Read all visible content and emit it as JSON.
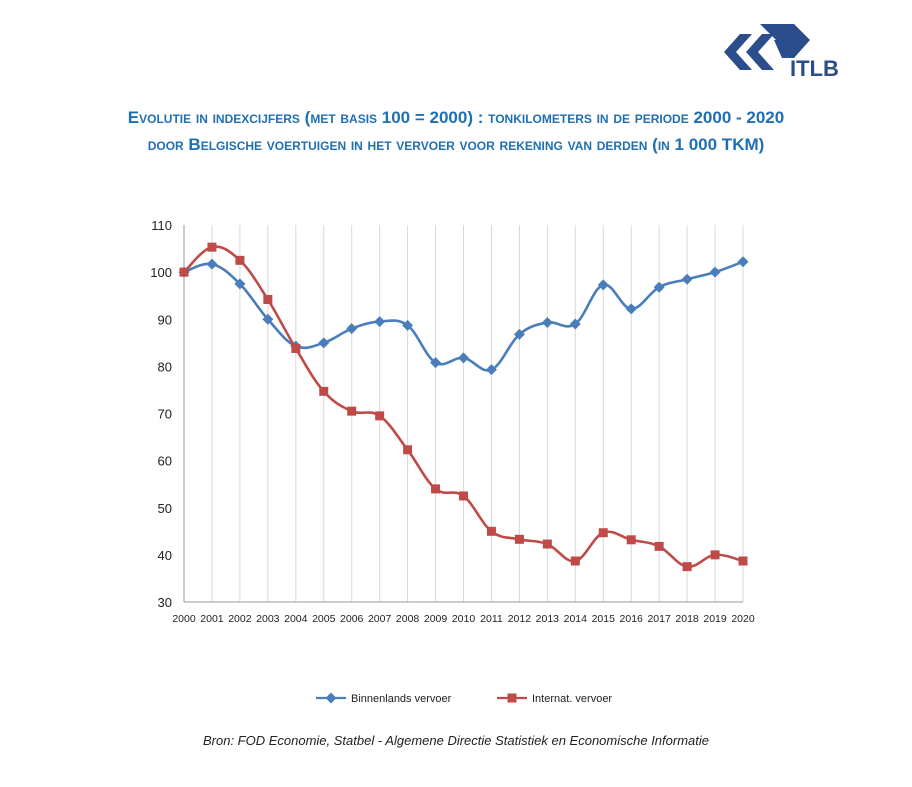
{
  "logo": {
    "text": "ITLB"
  },
  "title": {
    "line1": "Evolutie in indexcijfers (met basis 100 = 2000) : tonkilometers in de periode 2000 - 2020",
    "line2": "door Belgische voertuigen in het vervoer voor rekening van derden (in 1 000 TKM)"
  },
  "source": "Bron: FOD Economie, Statbel - Algemene Directie Statistiek en Economische Informatie",
  "chart_data": {
    "type": "line",
    "x": [
      "2000",
      "2001",
      "2002",
      "2003",
      "2004",
      "2005",
      "2006",
      "2007",
      "2008",
      "2009",
      "2010",
      "2011",
      "2012",
      "2013",
      "2014",
      "2015",
      "2016",
      "2017",
      "2018",
      "2019",
      "2020"
    ],
    "ylim": [
      30,
      110
    ],
    "yticks": [
      30,
      40,
      50,
      60,
      70,
      80,
      90,
      100,
      110
    ],
    "grid": "vertical",
    "legend_position": "bottom",
    "series": [
      {
        "name": "Binnenlands vervoer",
        "color": "#4a7ebb",
        "marker": "diamond",
        "values": [
          100,
          101.7,
          97.5,
          90,
          84.3,
          85,
          88,
          89.5,
          88.7,
          80.8,
          81.8,
          79.3,
          86.8,
          89.3,
          89,
          97.3,
          92.2,
          96.8,
          98.5,
          100,
          102.2
        ]
      },
      {
        "name": "Internat. vervoer",
        "color": "#be4b48",
        "marker": "square",
        "values": [
          100,
          105.3,
          102.5,
          94.2,
          83.8,
          74.7,
          70.5,
          69.5,
          62.3,
          54,
          52.5,
          45,
          43.3,
          42.3,
          38.7,
          44.7,
          43.2,
          41.8,
          37.5,
          40,
          38.7
        ]
      }
    ]
  }
}
